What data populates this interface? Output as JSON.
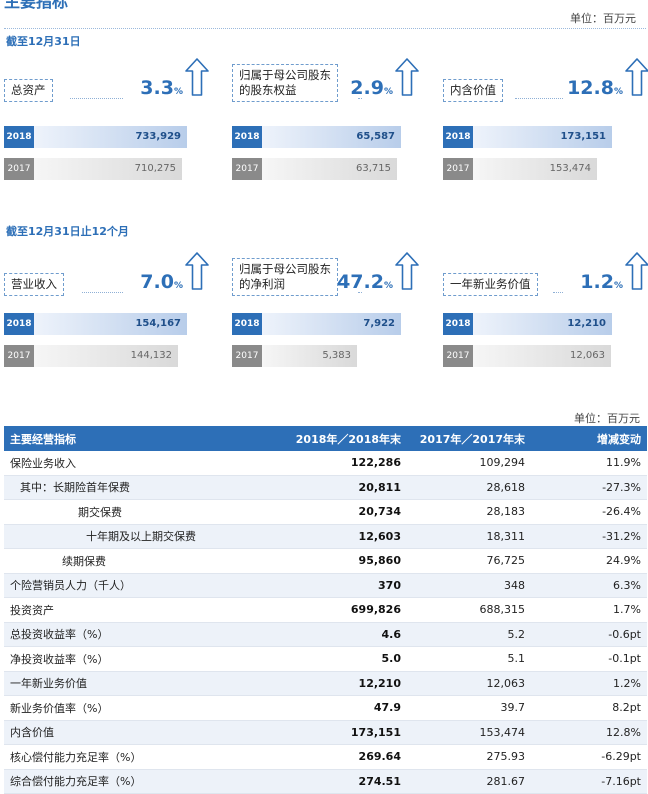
{
  "header": {
    "title_partial": "主要指标",
    "unit_top": "单位：百万元",
    "section1_label": "截至12月31日",
    "section2_label": "截至12月31日止12个月",
    "unit_table": "单位：百万元"
  },
  "metrics": [
    {
      "label_lines": [
        "总资产"
      ],
      "pct": "3.3",
      "pct_sign": "%",
      "y2018_tag": "2018",
      "y2018_value": "733,929",
      "y2017_tag": "2017",
      "y2017_value": "710,275",
      "fill_2018": 0.98,
      "fill_2017": 0.95
    },
    {
      "label_lines": [
        "归属于母公司股东",
        "的股东权益"
      ],
      "pct": "2.9",
      "pct_sign": "%",
      "y2018_tag": "2018",
      "y2018_value": "65,587",
      "y2017_tag": "2017",
      "y2017_value": "63,715",
      "fill_2018": 0.98,
      "fill_2017": 0.95
    },
    {
      "label_lines": [
        "内含价值"
      ],
      "pct": "12.8",
      "pct_sign": "%",
      "y2018_tag": "2018",
      "y2018_value": "173,151",
      "y2017_tag": "2017",
      "y2017_value": "153,474",
      "fill_2018": 0.98,
      "fill_2017": 0.87
    },
    {
      "label_lines": [
        "营业收入"
      ],
      "pct": "7.0",
      "pct_sign": "%",
      "y2018_tag": "2018",
      "y2018_value": "154,167",
      "y2017_tag": "2017",
      "y2017_value": "144,132",
      "fill_2018": 0.98,
      "fill_2017": 0.92
    },
    {
      "label_lines": [
        "归属于母公司股东",
        "的净利润"
      ],
      "pct": "47.2",
      "pct_sign": "%",
      "y2018_tag": "2018",
      "y2018_value": "7,922",
      "y2017_tag": "2017",
      "y2017_value": "5,383",
      "fill_2018": 0.98,
      "fill_2017": 0.67
    },
    {
      "label_lines": [
        "一年新业务价值"
      ],
      "pct": "1.2",
      "pct_sign": "%",
      "y2018_tag": "2018",
      "y2018_value": "12,210",
      "y2017_tag": "2017",
      "y2017_value": "12,063",
      "fill_2018": 0.98,
      "fill_2017": 0.97
    }
  ],
  "table": {
    "headers": [
      "主要经营指标",
      "2018年／2018年末",
      "2017年／2017年末",
      "增减变动"
    ],
    "rows": [
      [
        "保险业务收入",
        "122,286",
        "109,294",
        "11.9%"
      ],
      [
        "其中：长期险首年保费",
        "20,811",
        "28,618",
        "-27.3%"
      ],
      [
        "期交保费",
        "20,734",
        "28,183",
        "-26.4%"
      ],
      [
        "十年期及以上期交保费",
        "12,603",
        "18,311",
        "-31.2%"
      ],
      [
        "续期保费",
        "95,860",
        "76,725",
        "24.9%"
      ],
      [
        "个险营销员人力（千人）",
        "370",
        "348",
        "6.3%"
      ],
      [
        "投资资产",
        "699,826",
        "688,315",
        "1.7%"
      ],
      [
        "总投资收益率（%）",
        "4.6",
        "5.2",
        "-0.6pt"
      ],
      [
        "净投资收益率（%）",
        "5.0",
        "5.1",
        "-0.1pt"
      ],
      [
        "一年新业务价值",
        "12,210",
        "12,063",
        "1.2%"
      ],
      [
        "新业务价值率（%）",
        "47.9",
        "39.7",
        "8.2pt"
      ],
      [
        "内含价值",
        "173,151",
        "153,474",
        "12.8%"
      ],
      [
        "核心偿付能力充足率（%）",
        "269.64",
        "275.93",
        "-6.29pt"
      ],
      [
        "综合偿付能力充足率（%）",
        "274.51",
        "281.67",
        "-7.16pt"
      ]
    ]
  },
  "colors": {
    "accent": "#2d6fb7",
    "bar_2017": "#8a8a8a",
    "row_alt": "#edf2f9"
  }
}
